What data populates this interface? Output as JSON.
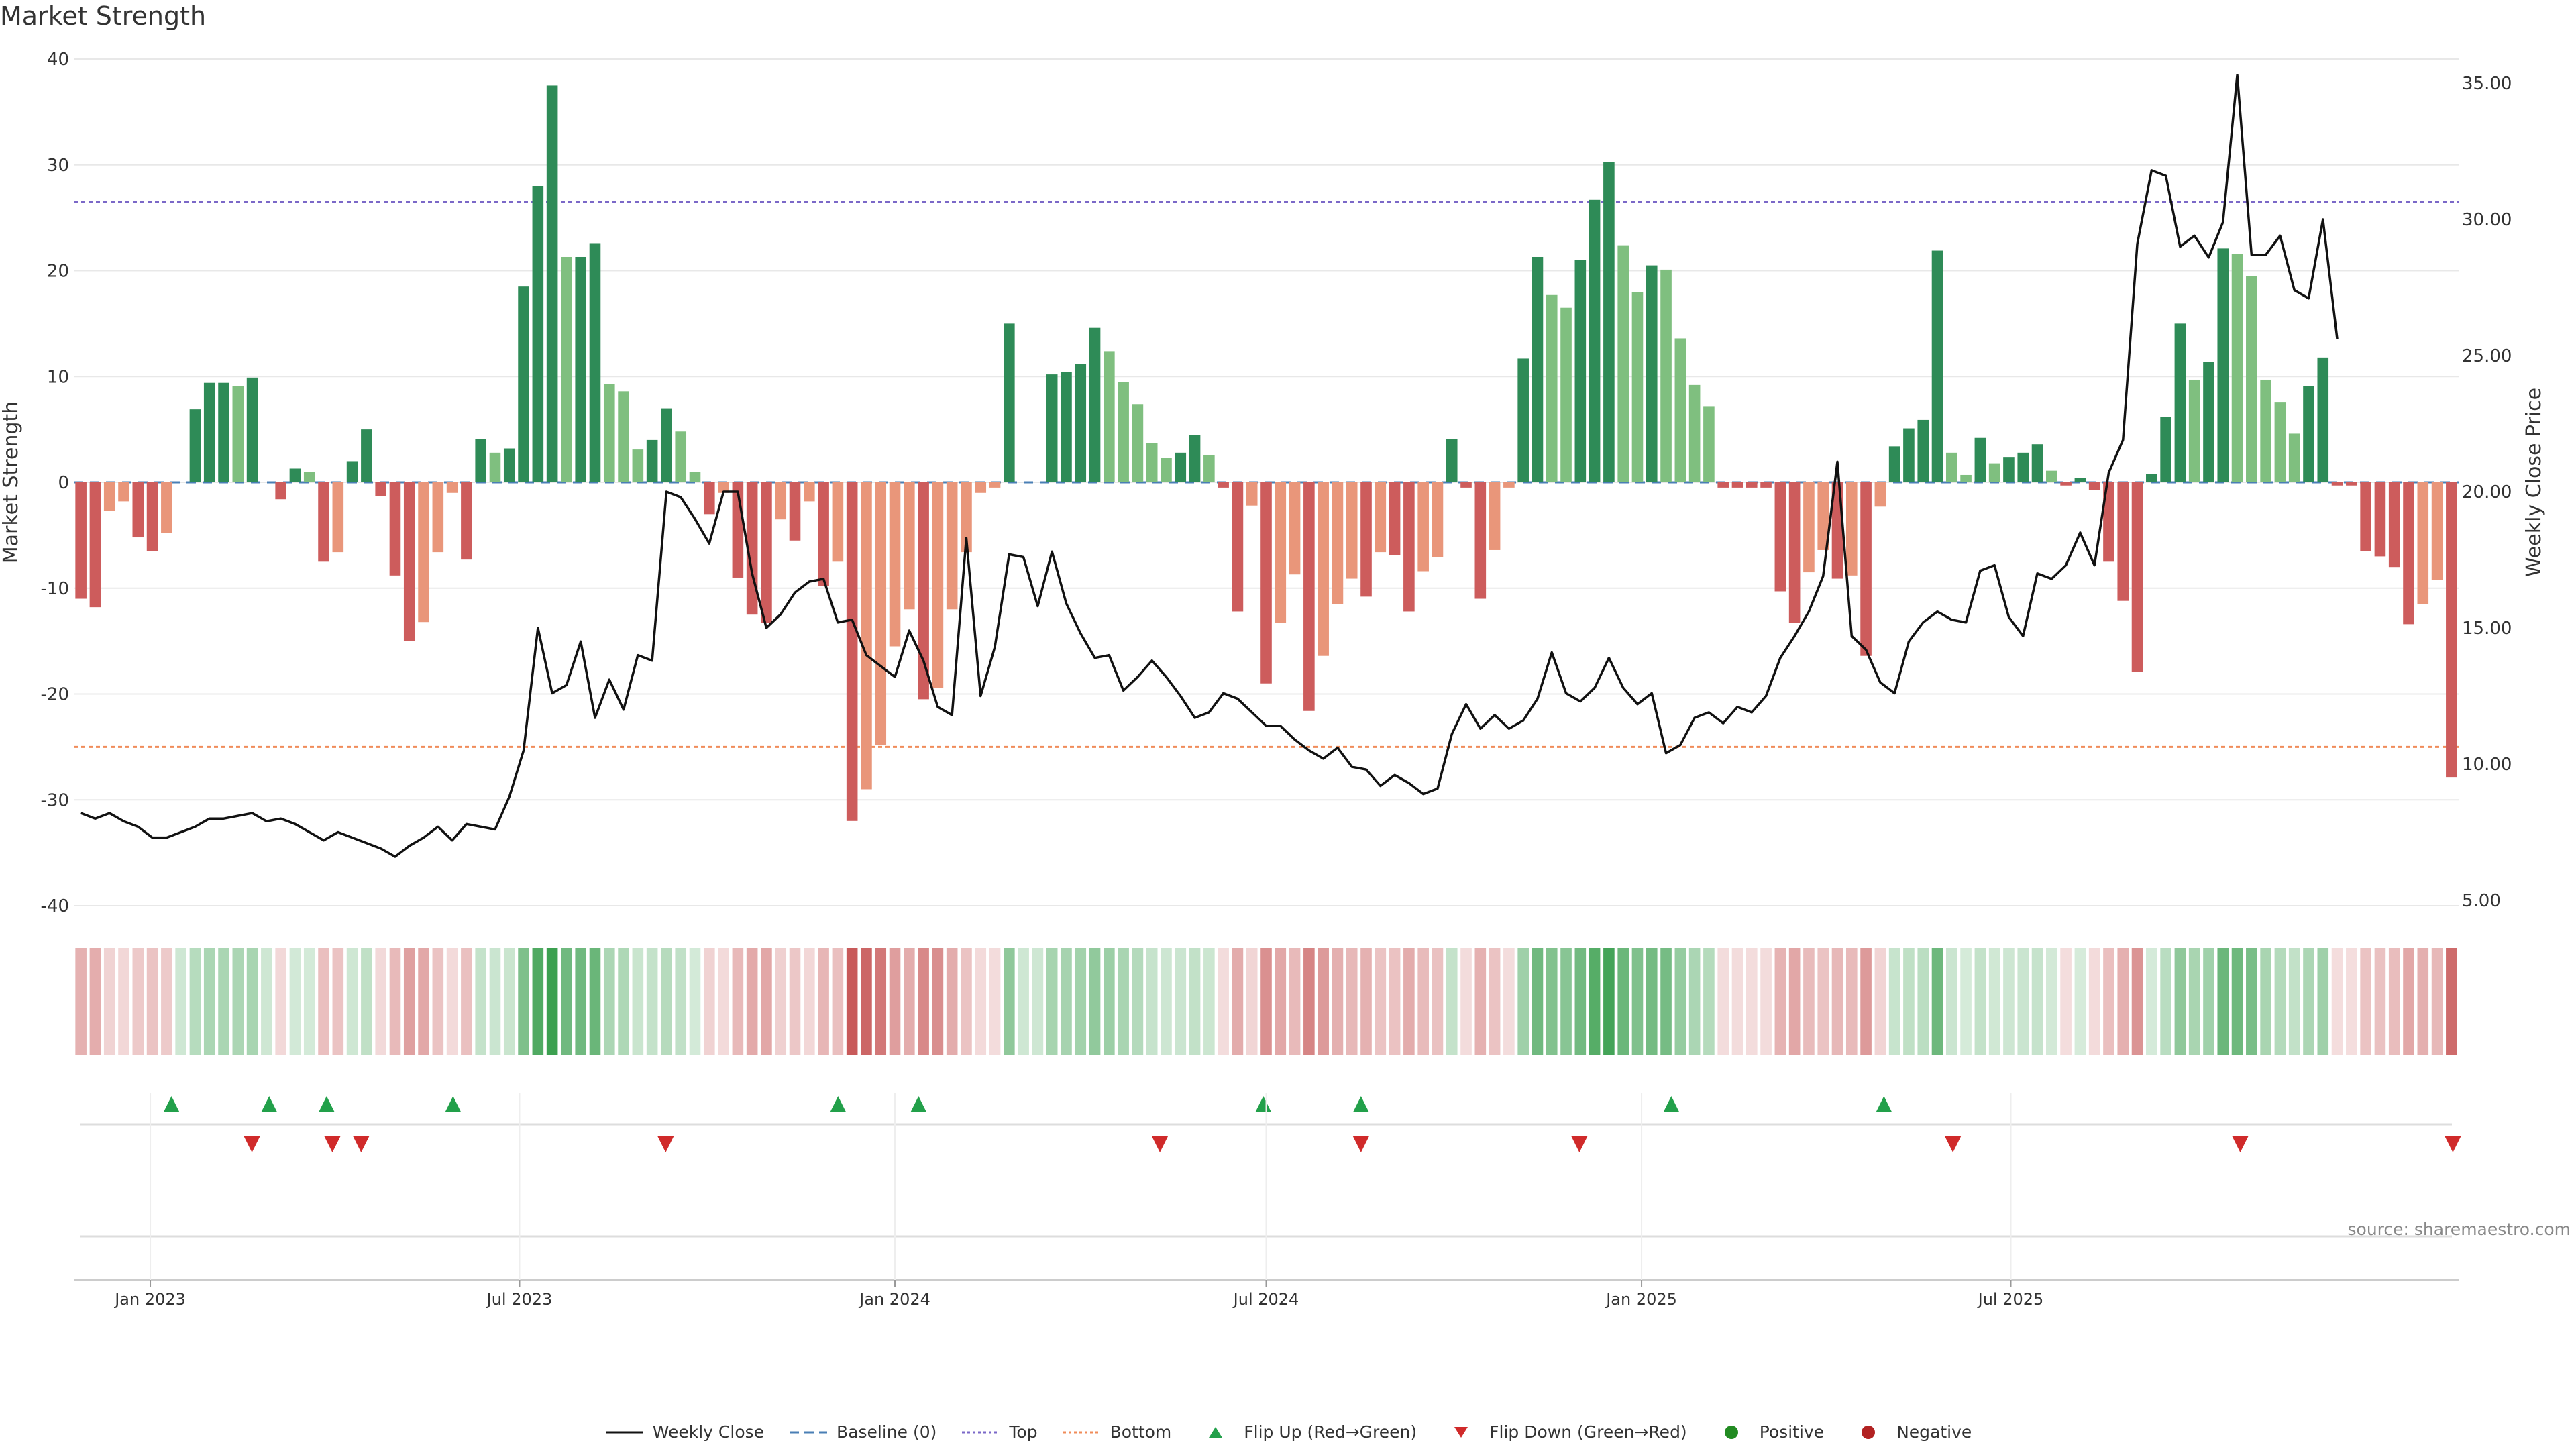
{
  "title": "Market Strength",
  "source": "source: sharemaestro.com",
  "colors": {
    "strong_green": "#2e8b57",
    "light_green": "#7fbf7f",
    "strong_red": "#cd5c5c",
    "light_red": "#e9967a",
    "price_line": "#111111",
    "top_line": "#7b68c8",
    "bottom_line": "#f08c5a",
    "baseline": "#4a7fb5",
    "flip_up": "#22a04a",
    "flip_down": "#d02a2a",
    "positive": "#228b22",
    "negative": "#b22222",
    "grid": "#e8e8e8"
  },
  "legend": [
    {
      "label": "Weekly Close",
      "kind": "line-solid",
      "color": "#111111"
    },
    {
      "label": "Baseline (0)",
      "kind": "line-dash",
      "color": "#4a7fb5"
    },
    {
      "label": "Top",
      "kind": "line-dot",
      "color": "#7b68c8"
    },
    {
      "label": "Bottom",
      "kind": "line-dot",
      "color": "#f08c5a"
    },
    {
      "label": "Flip Up (Red→Green)",
      "kind": "tri-up",
      "color": "#22a04a"
    },
    {
      "label": "Flip Down (Green→Red)",
      "kind": "tri-down",
      "color": "#d02a2a"
    },
    {
      "label": "Positive",
      "kind": "dot",
      "color": "#228b22"
    },
    {
      "label": "Negative",
      "kind": "dot",
      "color": "#b22222"
    }
  ],
  "chart_data": {
    "type": "bar",
    "title": "Market Strength",
    "ylabel": "Market Strength",
    "y2label": "Weekly Close Price",
    "ylim": [
      -40,
      40
    ],
    "y2lim": [
      5,
      35
    ],
    "yticks": [
      40,
      30,
      20,
      10,
      0,
      -10,
      -20,
      -30,
      -40
    ],
    "y2ticks": [
      "35.00",
      "30.00",
      "25.00",
      "20.00",
      "15.00",
      "10.00",
      "5.00"
    ],
    "x_start": "2022-11-28",
    "x_step_days": 7,
    "x_ticks": [
      {
        "date": "2023-01-01",
        "label": "Jan 2023"
      },
      {
        "date": "2023-07-01",
        "label": "Jul 2023"
      },
      {
        "date": "2024-01-01",
        "label": "Jan 2024"
      },
      {
        "date": "2024-07-01",
        "label": "Jul 2024"
      },
      {
        "date": "2025-01-01",
        "label": "Jan 2025"
      },
      {
        "date": "2025-07-01",
        "label": "Jul 2025"
      }
    ],
    "top_level": 26.5,
    "bottom_level": -25,
    "strength": [
      -11,
      -11.8,
      -2.7,
      -1.8,
      -5.2,
      -6.5,
      -4.8,
      0,
      6.9,
      9.4,
      9.4,
      9.1,
      9.9,
      0,
      -1.6,
      1.3,
      1,
      -7.5,
      -6.6,
      2,
      5,
      -1.3,
      -8.8,
      -15,
      -13.2,
      -6.6,
      -1,
      -7.3,
      4.1,
      2.8,
      3.2,
      18.5,
      28,
      37.5,
      21.3,
      21.3,
      22.6,
      9.3,
      8.6,
      3.1,
      4,
      7,
      4.8,
      1,
      -3,
      -1,
      -9,
      -12.5,
      -13.3,
      -3.5,
      -5.5,
      -1.8,
      -9.8,
      -7.5,
      -32,
      -29,
      -24.8,
      -15.5,
      -12,
      -20.5,
      -19.4,
      -12,
      -6.6,
      -1,
      -0.5,
      15,
      0,
      0,
      10.2,
      10.4,
      11.2,
      14.6,
      12.4,
      9.5,
      7.4,
      3.7,
      2.3,
      2.8,
      4.5,
      2.6,
      -0.5,
      -12.2,
      -2.2,
      -19,
      -13.3,
      -8.7,
      -21.6,
      -16.4,
      -11.5,
      -9.1,
      -10.8,
      -6.6,
      -6.9,
      -12.2,
      -8.4,
      -7.1,
      4.1,
      -0.5,
      -11,
      -6.4,
      -0.5,
      11.7,
      21.3,
      17.7,
      16.5,
      21,
      26.7,
      30.3,
      22.4,
      18,
      20.5,
      20.1,
      13.6,
      9.2,
      7.2,
      -0.5,
      -0.5,
      -0.5,
      -0.5,
      -10.3,
      -13.3,
      -8.5,
      -6.4,
      -9.1,
      -8.8,
      -16.4,
      -2.3,
      3.4,
      5.1,
      5.9,
      21.9,
      2.8,
      0.7,
      4.2,
      1.8,
      2.4,
      2.8,
      3.6,
      1.1,
      -0.3,
      0.4,
      -0.7,
      -7.5,
      -11.2,
      -17.9,
      0.8,
      6.2,
      15,
      9.7,
      11.4,
      22.1,
      21.6,
      19.5,
      9.7,
      7.6,
      4.6,
      9.1,
      11.8,
      -0.3,
      -0.3,
      -6.5,
      -7,
      -8,
      -13.4,
      -11.5,
      -9.2,
      -27.9
    ],
    "weekly_close": [
      8.2,
      8,
      8.2,
      7.9,
      7.7,
      7.3,
      7.3,
      7.5,
      7.7,
      8,
      8,
      8.1,
      8.2,
      7.9,
      8,
      7.8,
      7.5,
      7.2,
      7.5,
      7.3,
      7.1,
      6.9,
      6.6,
      7,
      7.3,
      7.7,
      7.2,
      7.8,
      7.7,
      7.6,
      8.8,
      10.5,
      15,
      12.6,
      12.9,
      14.5,
      11.7,
      13.1,
      12,
      14,
      13.8,
      20,
      19.8,
      19,
      18.1,
      20,
      20,
      17,
      15,
      15.5,
      16.3,
      16.7,
      16.8,
      15.2,
      15.3,
      14,
      13.6,
      13.2,
      14.9,
      13.8,
      12.1,
      11.8,
      18.3,
      12.5,
      14.3,
      17.7,
      17.6,
      15.8,
      17.8,
      15.9,
      14.8,
      13.9,
      14,
      12.7,
      13.2,
      13.8,
      13.2,
      12.5,
      11.7,
      11.9,
      12.6,
      12.4,
      11.9,
      11.4,
      11.4,
      10.9,
      10.5,
      10.2,
      10.6,
      9.9,
      9.8,
      9.2,
      9.6,
      9.3,
      8.9,
      9.1,
      11.1,
      12.2,
      11.3,
      11.8,
      11.3,
      11.6,
      12.4,
      14.1,
      12.6,
      12.3,
      12.8,
      13.9,
      12.8,
      12.2,
      12.6,
      10.4,
      10.7,
      11.7,
      11.9,
      11.5,
      12.1,
      11.9,
      12.5,
      13.9,
      14.7,
      15.6,
      16.9,
      21.1,
      14.7,
      14.2,
      13,
      12.6,
      14.5,
      15.2,
      15.6,
      15.3,
      15.2,
      17.1,
      17.3,
      15.4,
      14.7,
      17,
      16.8,
      17.3,
      18.5,
      17.3,
      20.7,
      21.9,
      29.1,
      31.8,
      31.6,
      29,
      29.4,
      28.6,
      29.9,
      35.3,
      28.7,
      28.7,
      29.4,
      27.4,
      27.1,
      30,
      25.6
    ],
    "flips_up": [
      17,
      34,
      44,
      66,
      133,
      147,
      207,
      224,
      278,
      315
    ],
    "flips_down": [
      31,
      45,
      50,
      103,
      224,
      189,
      262,
      327,
      377,
      414
    ]
  }
}
